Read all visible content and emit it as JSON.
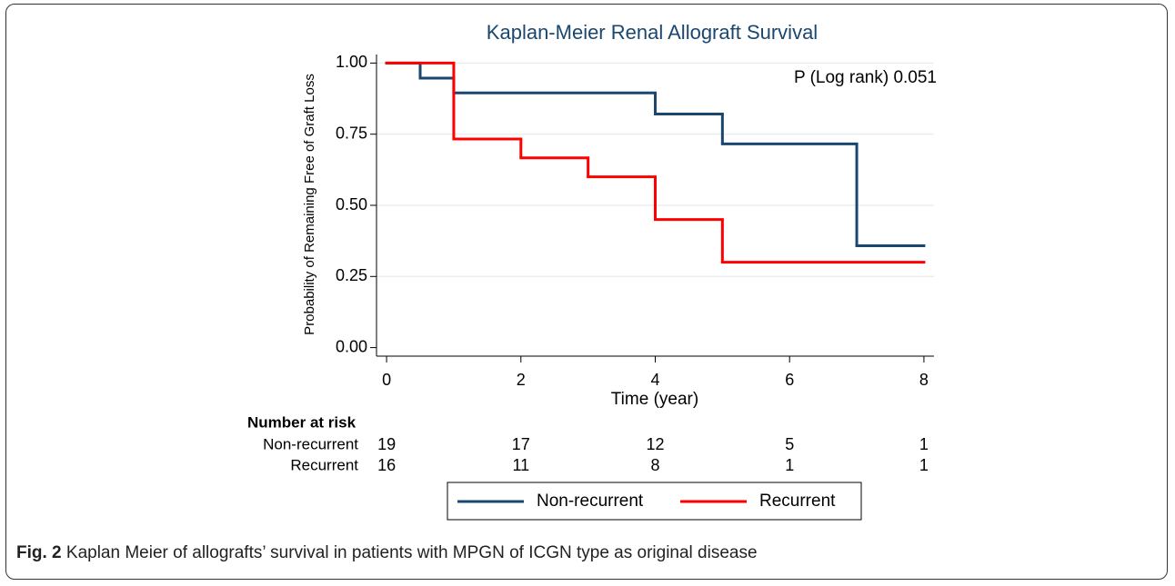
{
  "chart_data": {
    "type": "step",
    "title": "Kaplan-Meier Renal Allograft Survival",
    "annotation": "P (Log rank) 0.051",
    "x_label": "Time (year)",
    "y_label": "Probability of Remaining Free of Graft Loss",
    "xlim": [
      -0.15,
      8.15
    ],
    "ylim": [
      -0.03,
      1.03
    ],
    "xticks": [
      0,
      2,
      4,
      6,
      8
    ],
    "yticks": [
      {
        "value": 0,
        "label": "0.00"
      },
      {
        "value": 0.25,
        "label": "0.25"
      },
      {
        "value": 0.5,
        "label": "0.50"
      },
      {
        "value": 0.75,
        "label": "0.75"
      },
      {
        "value": 1,
        "label": "1.00"
      }
    ],
    "grid": true,
    "series": [
      {
        "name": "Non-recurrent",
        "color": "#1a476f",
        "x": [
          0,
          0.5,
          1,
          4,
          5,
          7,
          8
        ],
        "values": [
          1,
          0.947,
          0.895,
          0.821,
          0.716,
          0.358,
          0.358
        ]
      },
      {
        "name": "Recurrent",
        "color": "#ff0000",
        "x": [
          0,
          1,
          2,
          3,
          4,
          5,
          8
        ],
        "values": [
          1,
          0.733,
          0.667,
          0.6,
          0.45,
          0.3,
          0.3
        ]
      }
    ],
    "risk_table": {
      "title": "Number at risk",
      "times": [
        0,
        2,
        4,
        6,
        8
      ],
      "rows": [
        {
          "name": "Non-recurrent",
          "values": [
            19,
            17,
            12,
            5,
            1
          ]
        },
        {
          "name": "Recurrent",
          "values": [
            16,
            11,
            8,
            1,
            1
          ]
        }
      ]
    }
  },
  "caption": {
    "label": "Fig. 2",
    "text": "Kaplan Meier of allografts’ survival in patients with MPGN of ICGN type as original disease"
  }
}
